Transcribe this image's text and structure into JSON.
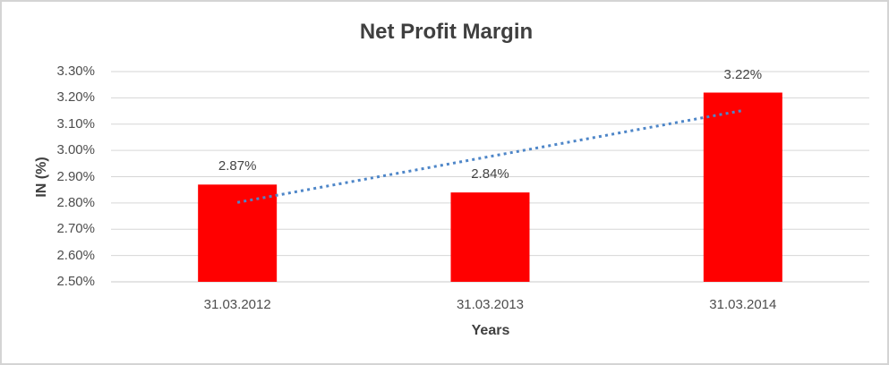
{
  "chart_data": {
    "type": "bar",
    "title": "Net Profit Margin",
    "categories": [
      "31.03.2012",
      "31.03.2013",
      "31.03.2014"
    ],
    "values": [
      2.87,
      2.84,
      3.22
    ],
    "data_labels": [
      "2.87%",
      "2.84%",
      "3.22%"
    ],
    "xlabel": "Years",
    "ylabel": "IN (%)",
    "ylim": [
      2.5,
      3.3
    ],
    "ytick_step": 0.1,
    "ytick_labels": [
      "2.50%",
      "2.60%",
      "2.70%",
      "2.80%",
      "2.90%",
      "3.00%",
      "3.10%",
      "3.20%",
      "3.30%"
    ],
    "grid": true,
    "legend": "none",
    "bar_color": "#FF0000",
    "trendline": {
      "type": "linear",
      "style": "dotted",
      "color": "#4E86C8",
      "start_value": 2.802,
      "end_value": 3.152
    }
  },
  "colors": {
    "title_text": "#3F3F3F",
    "axis_text": "#4D4D4D",
    "gridline": "#D6D6D6",
    "axis_line": "#C9C9C9",
    "frame_border": "#D4D4D4",
    "background": "#FFFFFF"
  }
}
